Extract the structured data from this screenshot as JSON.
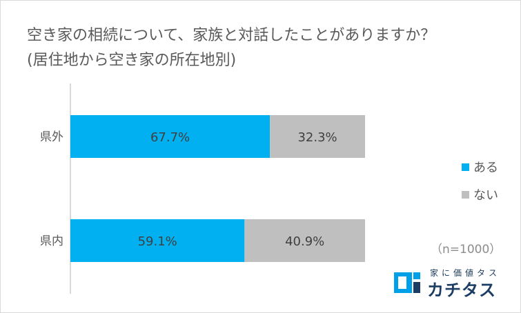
{
  "chart_data": {
    "type": "bar",
    "orientation": "horizontal",
    "stacked": true,
    "title": [
      "空き家の相続について、家族と対話したことがありますか？",
      "(居住地から空き家の所在地別)"
    ],
    "categories": [
      "県外",
      "県内"
    ],
    "series": [
      {
        "name": "ある",
        "values": [
          67.7,
          59.1
        ],
        "labels": [
          "67.7%",
          "59.1%"
        ],
        "color": "#00b0f0"
      },
      {
        "name": "ない",
        "values": [
          32.3,
          40.9
        ],
        "labels": [
          "32.3%",
          "40.9%"
        ],
        "color": "#bfbfbf"
      }
    ],
    "xlim": [
      0,
      100
    ],
    "legend": "right",
    "grid": false,
    "annotation": "（n=1000）"
  },
  "logo": {
    "subtitle": "家に価値タス",
    "name": "カチタス",
    "colors": {
      "mark": "#00a0e9",
      "text": "#1b3d63"
    }
  }
}
